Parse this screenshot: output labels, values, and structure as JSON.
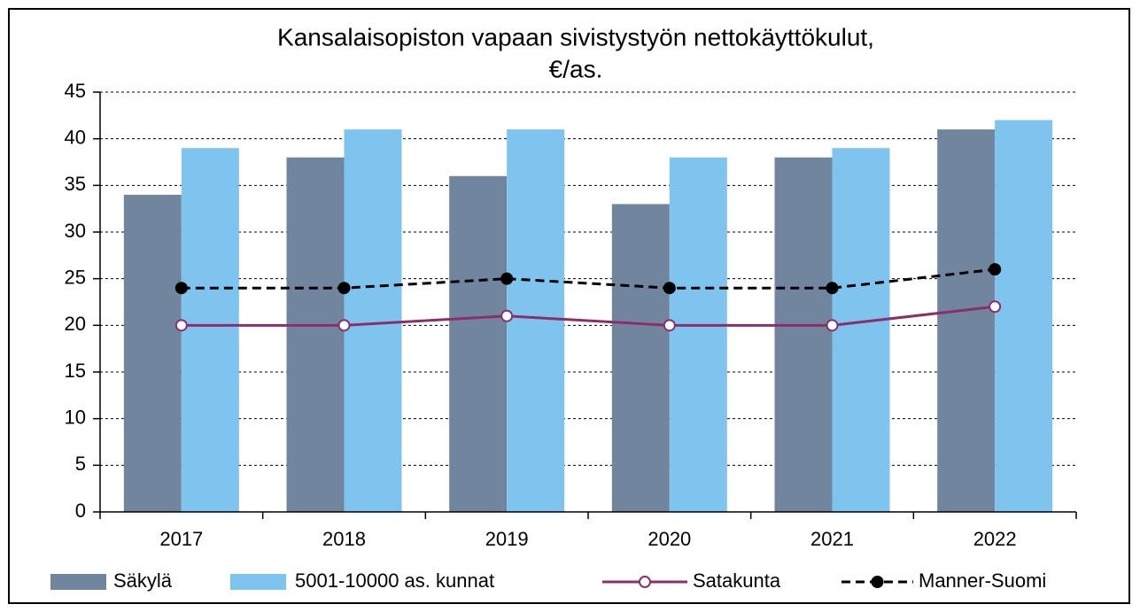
{
  "chart_data": {
    "type": "bar",
    "title": [
      "Kansalaisopiston vapaan sivistystyön nettokäyttökulut,",
      "€/as."
    ],
    "categories": [
      "2017",
      "2018",
      "2019",
      "2020",
      "2021",
      "2022"
    ],
    "series": [
      {
        "name": "Säkylä",
        "type": "bar",
        "color": "#71869e",
        "values": [
          34,
          38,
          36,
          33,
          38,
          41
        ]
      },
      {
        "name": "5001-10000 as. kunnat",
        "type": "bar",
        "color": "#7fc4ee",
        "values": [
          39,
          41,
          41,
          38,
          39,
          42
        ]
      },
      {
        "name": "Satakunta",
        "type": "line",
        "color": "#8b2f6b",
        "marker": "open",
        "dashed": false,
        "values": [
          20,
          20,
          21,
          20,
          20,
          22
        ]
      },
      {
        "name": "Manner-Suomi",
        "type": "line",
        "color": "#000000",
        "marker": "filled",
        "dashed": true,
        "values": [
          24,
          24,
          25,
          24,
          24,
          26
        ]
      }
    ],
    "ylim": [
      0,
      45
    ],
    "yticks": [
      0,
      5,
      10,
      15,
      20,
      25,
      30,
      35,
      40,
      45
    ],
    "grid": true,
    "legend": "bottom"
  }
}
